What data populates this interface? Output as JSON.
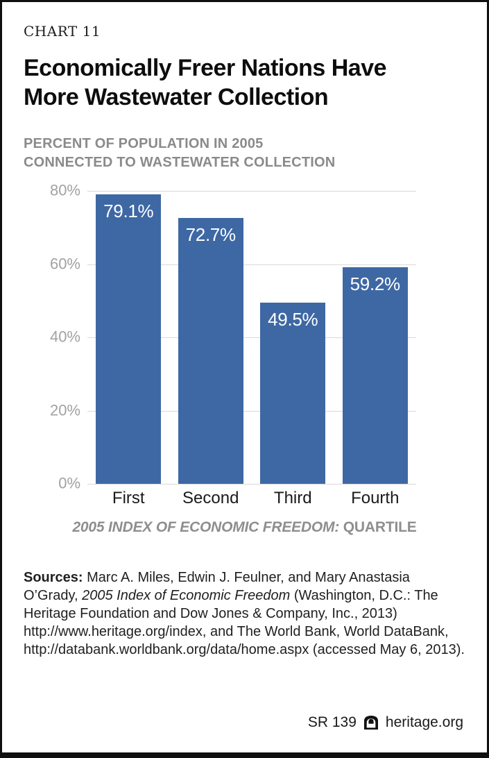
{
  "page": {
    "kicker": "CHART 11",
    "title_line1": "Economically Freer Nations Have",
    "title_line2": "More Wastewater Collection",
    "subtitle_line1": "PERCENT OF POPULATION IN 2005",
    "subtitle_line2": "CONNECTED TO WASTEWATER COLLECTION"
  },
  "chart_data": {
    "type": "bar",
    "title": "Economically Freer Nations Have More Wastewater Collection",
    "subtitle": "Percent of population in 2005 connected to wastewater collection",
    "categories": [
      "First",
      "Second",
      "Third",
      "Fourth"
    ],
    "values": [
      79.1,
      72.7,
      49.5,
      59.2
    ],
    "value_labels": [
      "79.1%",
      "72.7%",
      "49.5%",
      "59.2%"
    ],
    "yticks": [
      "80%",
      "60%",
      "40%",
      "20%",
      "0%"
    ],
    "ylim": [
      0,
      80
    ],
    "grid": true,
    "legend": "none",
    "xlabel_italic": "2005 INDEX OF ECONOMIC FREEDOM:",
    "xlabel_regular": " QUARTILE",
    "bar_color": "#3E68A4",
    "grid_color": "#D9D9D9",
    "tick_color": "#A2A2A4"
  },
  "sources": {
    "label": "Sources:",
    "text_before_italic": " Marc A. Miles, Edwin J. Feulner, and Mary Anastasia O’Grady, ",
    "italic_text": "2005 Index of Economic Freedom",
    "text_after_italic": " (Washington, D.C.: The Heritage Foundation and Dow Jones & Company, Inc., 2013) http://www.heritage.org/index, and The World Bank, World DataBank, http://databank.worldbank.org/data/home.aspx (accessed May 6, 2013)."
  },
  "footer": {
    "report_id": "SR 139",
    "site": "heritage.org",
    "logo": "heritage-bell"
  }
}
